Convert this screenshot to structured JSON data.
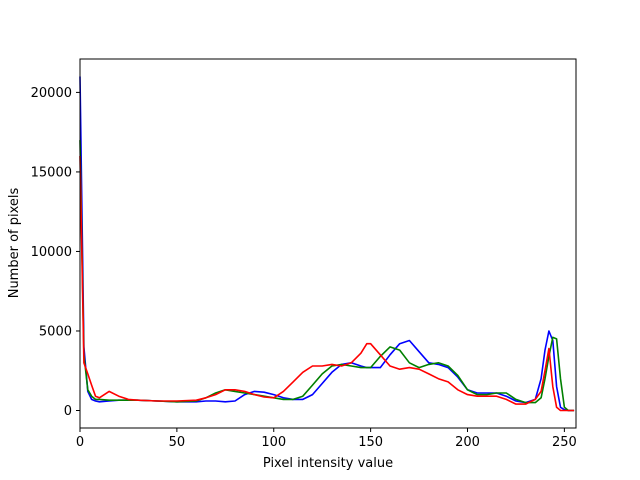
{
  "chart_data": {
    "type": "line",
    "title": "",
    "xlabel": "Pixel intensity value",
    "ylabel": "Number of pixels",
    "xlim": [
      0,
      256
    ],
    "ylim": [
      -1100,
      22100
    ],
    "grid": false,
    "legend": null,
    "x_ticks": [
      0,
      50,
      100,
      150,
      200,
      250
    ],
    "y_ticks": [
      0,
      5000,
      10000,
      15000,
      20000
    ],
    "x": [
      0,
      2,
      4,
      6,
      8,
      10,
      15,
      20,
      25,
      30,
      40,
      50,
      60,
      65,
      70,
      75,
      80,
      85,
      90,
      95,
      100,
      105,
      110,
      115,
      120,
      125,
      130,
      135,
      140,
      145,
      148,
      150,
      155,
      160,
      165,
      170,
      175,
      180,
      185,
      190,
      195,
      200,
      205,
      210,
      215,
      220,
      225,
      230,
      235,
      238,
      240,
      242,
      244,
      246,
      248,
      250,
      252,
      255
    ],
    "series": [
      {
        "name": "blue",
        "color": "#0000ff",
        "values": [
          21000,
          4000,
          1200,
          700,
          600,
          550,
          600,
          650,
          650,
          650,
          600,
          550,
          550,
          600,
          600,
          550,
          600,
          1000,
          1200,
          1150,
          1000,
          800,
          700,
          700,
          1000,
          1700,
          2400,
          2900,
          3000,
          2800,
          2700,
          2700,
          2700,
          3500,
          4200,
          4400,
          3700,
          3000,
          2900,
          2700,
          2100,
          1300,
          1100,
          1100,
          1100,
          900,
          600,
          500,
          700,
          2000,
          3800,
          5000,
          4400,
          1500,
          200,
          50,
          0,
          0
        ]
      },
      {
        "name": "green",
        "color": "#008000",
        "values": [
          17000,
          3500,
          1300,
          900,
          700,
          700,
          650,
          650,
          650,
          650,
          600,
          550,
          600,
          800,
          1100,
          1300,
          1200,
          1100,
          1000,
          900,
          800,
          700,
          700,
          900,
          1600,
          2300,
          2800,
          2900,
          2800,
          2700,
          2700,
          2700,
          3400,
          4000,
          3800,
          3000,
          2700,
          2900,
          3000,
          2800,
          2200,
          1300,
          1000,
          1000,
          1100,
          1100,
          700,
          500,
          500,
          800,
          2000,
          3400,
          4600,
          4500,
          2000,
          200,
          0,
          0
        ]
      },
      {
        "name": "red",
        "color": "#ff0000",
        "values": [
          16000,
          3000,
          2300,
          1600,
          900,
          800,
          1200,
          900,
          700,
          650,
          600,
          600,
          650,
          800,
          1000,
          1300,
          1300,
          1200,
          1000,
          850,
          800,
          1200,
          1800,
          2400,
          2800,
          2800,
          2900,
          2800,
          3000,
          3600,
          4200,
          4200,
          3500,
          2800,
          2600,
          2700,
          2600,
          2300,
          2000,
          1800,
          1300,
          1000,
          900,
          900,
          900,
          700,
          400,
          400,
          700,
          1200,
          2500,
          3900,
          1500,
          200,
          0,
          0,
          0,
          0
        ]
      }
    ]
  }
}
